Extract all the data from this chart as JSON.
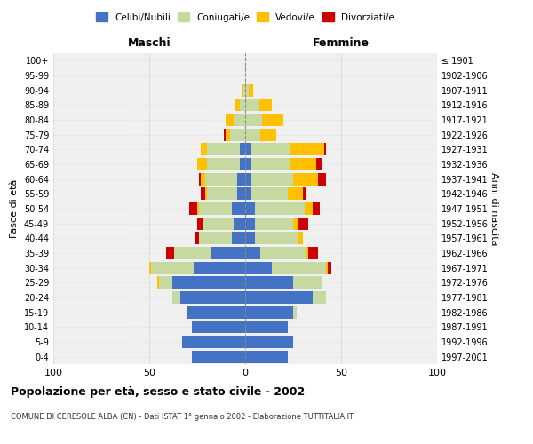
{
  "age_groups": [
    "100+",
    "95-99",
    "90-94",
    "85-89",
    "80-84",
    "75-79",
    "70-74",
    "65-69",
    "60-64",
    "55-59",
    "50-54",
    "45-49",
    "40-44",
    "35-39",
    "30-34",
    "25-29",
    "20-24",
    "15-19",
    "10-14",
    "5-9",
    "0-4"
  ],
  "birth_years": [
    "≤ 1901",
    "1902-1906",
    "1907-1911",
    "1912-1916",
    "1917-1921",
    "1922-1926",
    "1927-1931",
    "1932-1936",
    "1937-1941",
    "1942-1946",
    "1947-1951",
    "1952-1956",
    "1957-1961",
    "1962-1966",
    "1967-1971",
    "1972-1976",
    "1977-1981",
    "1982-1986",
    "1987-1991",
    "1992-1996",
    "1997-2001"
  ],
  "males": {
    "celibi": [
      0,
      0,
      0,
      0,
      0,
      0,
      3,
      3,
      4,
      4,
      7,
      6,
      7,
      18,
      27,
      38,
      34,
      30,
      28,
      33,
      28
    ],
    "coniugati": [
      0,
      0,
      1,
      3,
      6,
      8,
      17,
      17,
      17,
      16,
      17,
      16,
      17,
      19,
      22,
      7,
      4,
      0,
      0,
      0,
      0
    ],
    "vedovi": [
      0,
      0,
      1,
      2,
      4,
      2,
      3,
      5,
      2,
      1,
      1,
      0,
      0,
      0,
      1,
      1,
      0,
      0,
      0,
      0,
      0
    ],
    "divorziati": [
      0,
      0,
      0,
      0,
      0,
      1,
      0,
      0,
      1,
      2,
      4,
      3,
      2,
      4,
      0,
      0,
      0,
      0,
      0,
      0,
      0
    ]
  },
  "females": {
    "nubili": [
      0,
      0,
      0,
      0,
      0,
      0,
      3,
      3,
      3,
      3,
      5,
      5,
      5,
      8,
      14,
      25,
      35,
      25,
      22,
      25,
      22
    ],
    "coniugate": [
      0,
      0,
      2,
      7,
      9,
      8,
      20,
      20,
      22,
      19,
      26,
      20,
      23,
      24,
      28,
      15,
      7,
      2,
      0,
      0,
      0
    ],
    "vedove": [
      0,
      0,
      2,
      7,
      11,
      8,
      18,
      14,
      13,
      8,
      4,
      3,
      2,
      1,
      1,
      0,
      0,
      0,
      0,
      0,
      0
    ],
    "divorziate": [
      0,
      0,
      0,
      0,
      0,
      0,
      1,
      3,
      4,
      2,
      4,
      5,
      0,
      5,
      2,
      0,
      0,
      0,
      0,
      0,
      0
    ]
  },
  "colors": {
    "celibi": "#4472c4",
    "coniugati": "#c5d9a0",
    "vedovi": "#ffc000",
    "divorziati": "#cc0000"
  },
  "title": "Popolazione per età, sesso e stato civile - 2002",
  "subtitle": "COMUNE DI CERESOLE ALBA (CN) - Dati ISTAT 1° gennaio 2002 - Elaborazione TUTTITALIA.IT",
  "xlabel_left": "Maschi",
  "xlabel_right": "Femmine",
  "ylabel_left": "Fasce di età",
  "ylabel_right": "Anni di nascita",
  "xlim": 100,
  "background_color": "#ffffff",
  "grid_color": "#cccccc",
  "legend_labels": [
    "Celibi/Nubili",
    "Coniugati/e",
    "Vedovi/e",
    "Divorziati/e"
  ]
}
